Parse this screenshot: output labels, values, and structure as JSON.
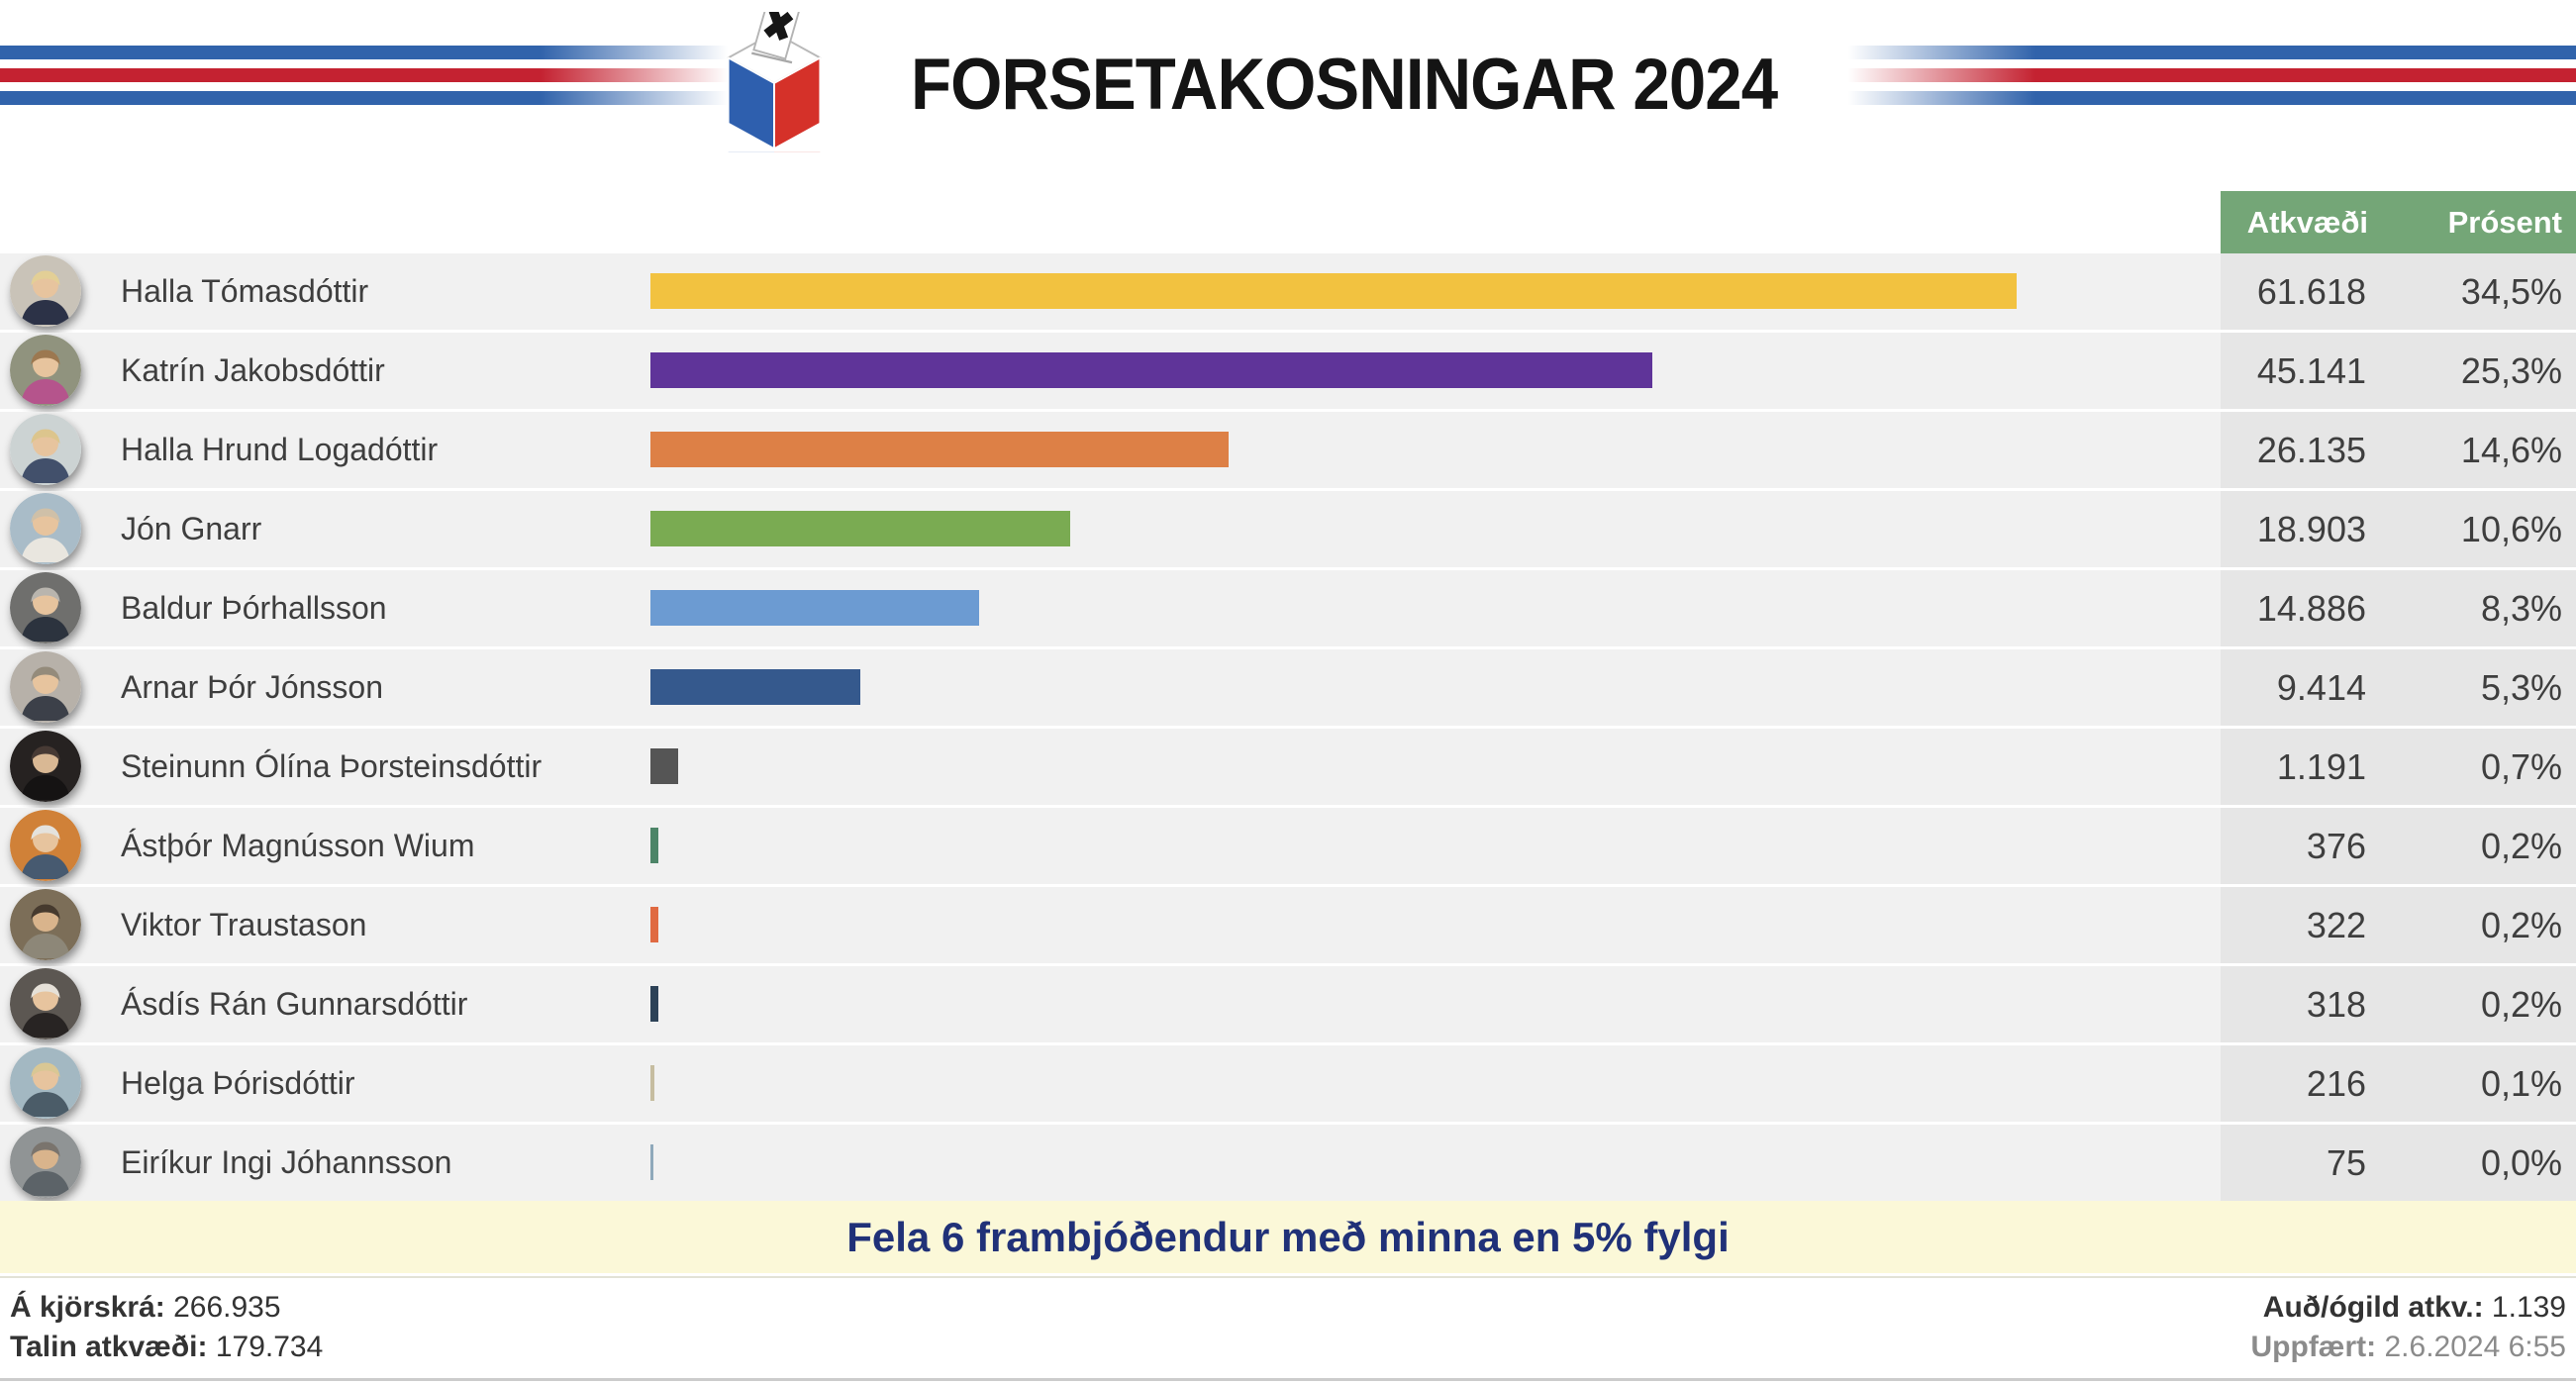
{
  "header": {
    "title": "FORSETAKOSNINGAR 2024",
    "logo_icon": "ballot-box-icon"
  },
  "table": {
    "columns": {
      "votes": "Atkvæði",
      "percent": "Prósent"
    },
    "rows": [
      {
        "name": "Halla Tómasdóttir",
        "votes": "61.618",
        "percent": "34,5%",
        "pct": 34.5,
        "color": "#f2c240",
        "avatar": {
          "bg": "#c9c3b8",
          "hair": "#e3cf96",
          "torso": "#2c3247"
        }
      },
      {
        "name": "Katrín Jakobsdóttir",
        "votes": "45.141",
        "percent": "25,3%",
        "pct": 25.3,
        "color": "#5f3499",
        "avatar": {
          "bg": "#90937e",
          "hair": "#9c7850",
          "torso": "#b5548c"
        }
      },
      {
        "name": "Halla Hrund Logadóttir",
        "votes": "26.135",
        "percent": "14,6%",
        "pct": 14.6,
        "color": "#dd8046",
        "avatar": {
          "bg": "#ccd3d3",
          "hair": "#dcc58d",
          "torso": "#42506b"
        }
      },
      {
        "name": "Jón Gnarr",
        "votes": "18.903",
        "percent": "10,6%",
        "pct": 10.6,
        "color": "#7aab52",
        "avatar": {
          "bg": "#a9bcc8",
          "hair": "#cfc0a8",
          "torso": "#e9e6df"
        }
      },
      {
        "name": "Baldur Þórhallsson",
        "votes": "14.886",
        "percent": "8,3%",
        "pct": 8.3,
        "color": "#6c9bd2",
        "avatar": {
          "bg": "#6f6f6d",
          "hair": "#b9b5ae",
          "torso": "#2c333e"
        }
      },
      {
        "name": "Arnar Þór Jónsson",
        "votes": "9.414",
        "percent": "5,3%",
        "pct": 5.3,
        "color": "#35598d",
        "avatar": {
          "bg": "#b7b1a9",
          "hair": "#948b7b",
          "torso": "#3c4049"
        }
      },
      {
        "name": "Steinunn Ólína Þorsteinsdóttir",
        "votes": "1.191",
        "percent": "0,7%",
        "pct": 0.7,
        "color": "#555555",
        "avatar": {
          "bg": "#262221",
          "hair": "#473a34",
          "torso": "#151313",
          "skin": "#d9b894"
        }
      },
      {
        "name": "Ástþór Magnússon Wium",
        "votes": "376",
        "percent": "0,2%",
        "pct": 0.2,
        "color": "#4d8568",
        "avatar": {
          "bg": "#d08138",
          "hair": "#e4e2dd",
          "torso": "#475a70"
        }
      },
      {
        "name": "Viktor Traustason",
        "votes": "322",
        "percent": "0,2%",
        "pct": 0.2,
        "color": "#e06a42",
        "avatar": {
          "bg": "#7c6e58",
          "hair": "#463a2e",
          "torso": "#8d8778",
          "skin": "#d9b48c"
        }
      },
      {
        "name": "Ásdís Rán Gunnarsdóttir",
        "votes": "318",
        "percent": "0,2%",
        "pct": 0.2,
        "color": "#2d4257",
        "avatar": {
          "bg": "#5c5752",
          "hair": "#e6e1d8",
          "torso": "#282423"
        }
      },
      {
        "name": "Helga Þórisdóttir",
        "votes": "216",
        "percent": "0,1%",
        "pct": 0.1,
        "color": "#c6bda0",
        "avatar": {
          "bg": "#a3b8c2",
          "hair": "#d9c794",
          "torso": "#4b5c68"
        }
      },
      {
        "name": "Eiríkur Ingi Jóhannsson",
        "votes": "75",
        "percent": "0,0%",
        "pct": 0.0,
        "color": "#8fa9bb",
        "avatar": {
          "bg": "#909495",
          "hair": "#7a746d",
          "torso": "#5c6368",
          "skin": "#d9b48c"
        }
      }
    ]
  },
  "banner": {
    "label": "Fela 6 frambjóðendur með minna en 5% fylgi"
  },
  "footer": {
    "left": [
      {
        "label": "Á kjörskrá:",
        "value": "266.935"
      },
      {
        "label": "Talin atkvæði:",
        "value": "179.734"
      }
    ],
    "right": [
      {
        "label": "Auð/ógild atkv.:",
        "value": "1.139"
      },
      {
        "label": "Uppfært:",
        "value": "2.6.2024 6:55",
        "muted": true
      }
    ]
  },
  "theme": {
    "flag_blue": "#3163ab",
    "flag_red": "#c42231",
    "logo_blue": "#2e5fae",
    "logo_red": "#d53129",
    "header_green": "#74a677",
    "row_bg": "#f1f1f1",
    "cell_bg": "#e6e6e6",
    "text_dark": "#3e3e3e",
    "title_color": "#141414",
    "banner_bg": "#fbf8d8",
    "banner_text": "#203178",
    "footer_muted": "#8b8b8b",
    "footer_border": "#cccccc"
  },
  "chart_data": {
    "type": "bar",
    "orientation": "horizontal",
    "title": "FORSETAKOSNINGAR 2024",
    "categories": [
      "Halla Tómasdóttir",
      "Katrín Jakobsdóttir",
      "Halla Hrund Logadóttir",
      "Jón Gnarr",
      "Baldur Þórhallsson",
      "Arnar Þór Jónsson",
      "Steinunn Ólína Þorsteinsdóttir",
      "Ástþór Magnússon Wium",
      "Viktor Traustason",
      "Ásdís Rán Gunnarsdóttir",
      "Helga Þórisdóttir",
      "Eiríkur Ingi Jóhannsson"
    ],
    "series": [
      {
        "name": "Atkvæði",
        "values": [
          61618,
          45141,
          26135,
          18903,
          14886,
          9414,
          1191,
          376,
          322,
          318,
          216,
          75
        ]
      },
      {
        "name": "Prósent",
        "values": [
          34.5,
          25.3,
          14.6,
          10.6,
          8.3,
          5.3,
          0.7,
          0.2,
          0.2,
          0.2,
          0.1,
          0.0
        ]
      }
    ],
    "bar_colors": [
      "#f2c240",
      "#5f3499",
      "#dd8046",
      "#7aab52",
      "#6c9bd2",
      "#35598d",
      "#555555",
      "#4d8568",
      "#e06a42",
      "#2d4257",
      "#c6bda0",
      "#8fa9bb"
    ],
    "xlabel": "",
    "ylabel": "",
    "xlim_percent": [
      0,
      39.7
    ],
    "grid": false,
    "legend_position": "table-header",
    "summary": {
      "on_roll": 266935,
      "counted_votes": 179734,
      "blank_invalid": 1139,
      "updated": "2.6.2024 6:55"
    }
  }
}
